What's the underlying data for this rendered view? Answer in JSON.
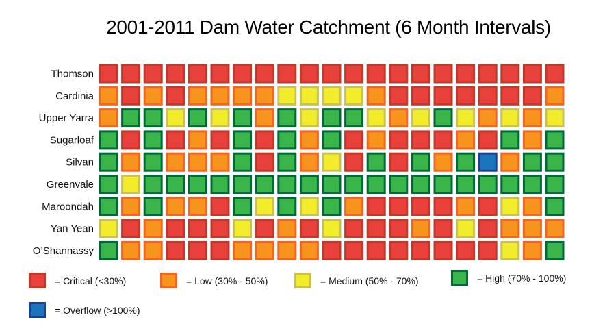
{
  "chart_data": {
    "type": "heatmap",
    "title": "2001-2011 Dam Water Catchment (6 Month Intervals)",
    "rows": [
      "Thomson",
      "Cardinia",
      "Upper Yarra",
      "Sugarloaf",
      "Silvan",
      "Greenvale",
      "Maroondah",
      "Yan Yean",
      "O’Shannassy"
    ],
    "columns_count": 21,
    "categories": {
      "C": {
        "label": "= Critical (<30%)",
        "fill": "#e8413c",
        "border": "#c0392b"
      },
      "L": {
        "label": "= Low (30% - 50%)",
        "fill": "#f7941d",
        "border": "#f26522"
      },
      "M": {
        "label": "= Medium (50% - 70%)",
        "fill": "#f2ec2a",
        "border": "#c8c155"
      },
      "H": {
        "label": "= High (70% - 100%)",
        "fill": "#39b54a",
        "border": "#00693a"
      },
      "O": {
        "label": "= Overflow (>100%)",
        "fill": "#1b75bc",
        "border": "#1c3f94"
      }
    },
    "legend_order": [
      "C",
      "L",
      "M",
      "H",
      "O"
    ],
    "values": [
      [
        "C",
        "C",
        "C",
        "C",
        "C",
        "C",
        "C",
        "C",
        "C",
        "C",
        "C",
        "C",
        "C",
        "C",
        "C",
        "C",
        "C",
        "C",
        "C",
        "C",
        "C"
      ],
      [
        "L",
        "C",
        "L",
        "C",
        "L",
        "L",
        "L",
        "L",
        "M",
        "M",
        "M",
        "M",
        "L",
        "C",
        "C",
        "C",
        "C",
        "C",
        "C",
        "C",
        "L"
      ],
      [
        "L",
        "H",
        "H",
        "M",
        "H",
        "M",
        "H",
        "L",
        "H",
        "M",
        "H",
        "H",
        "M",
        "L",
        "M",
        "H",
        "M",
        "L",
        "M",
        "L",
        "M"
      ],
      [
        "H",
        "C",
        "H",
        "C",
        "L",
        "C",
        "H",
        "C",
        "H",
        "L",
        "H",
        "C",
        "L",
        "C",
        "C",
        "C",
        "L",
        "C",
        "H",
        "L",
        "H"
      ],
      [
        "H",
        "L",
        "H",
        "L",
        "L",
        "L",
        "H",
        "C",
        "H",
        "L",
        "M",
        "C",
        "H",
        "C",
        "H",
        "L",
        "H",
        "O",
        "L",
        "H",
        "H"
      ],
      [
        "H",
        "M",
        "H",
        "H",
        "H",
        "H",
        "H",
        "H",
        "H",
        "H",
        "H",
        "H",
        "H",
        "H",
        "H",
        "H",
        "H",
        "H",
        "H",
        "H",
        "H"
      ],
      [
        "H",
        "L",
        "H",
        "L",
        "L",
        "C",
        "H",
        "M",
        "H",
        "M",
        "H",
        "L",
        "C",
        "C",
        "C",
        "C",
        "L",
        "C",
        "M",
        "L",
        "H"
      ],
      [
        "M",
        "C",
        "L",
        "C",
        "C",
        "C",
        "M",
        "C",
        "L",
        "C",
        "M",
        "C",
        "C",
        "C",
        "L",
        "C",
        "M",
        "C",
        "L",
        "L",
        "L"
      ],
      [
        "H",
        "L",
        "L",
        "C",
        "C",
        "C",
        "L",
        "L",
        "L",
        "L",
        "C",
        "C",
        "C",
        "C",
        "C",
        "C",
        "C",
        "C",
        "M",
        "L",
        "H"
      ]
    ]
  }
}
